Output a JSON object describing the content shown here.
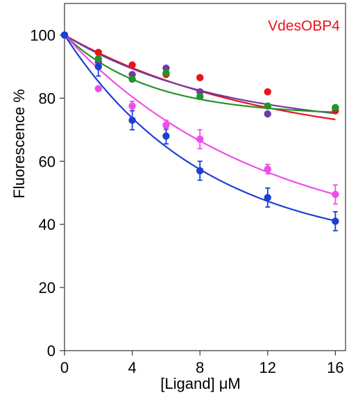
{
  "chart_data": {
    "type": "scatter",
    "title": "VdesOBP4",
    "title_color": "#e8141b",
    "xlabel": "[Ligand] μM",
    "ylabel": "Fluorescence %",
    "xlim": [
      0,
      16.6
    ],
    "ylim": [
      0,
      110
    ],
    "xticks": [
      0,
      4,
      8,
      12,
      16
    ],
    "yticks": [
      0,
      20,
      40,
      60,
      80,
      100
    ],
    "grid": false,
    "legend": "none",
    "series": [
      {
        "color": "#e8141b",
        "x": [
          0,
          2,
          4,
          6,
          8,
          12,
          16
        ],
        "y": [
          100,
          94.5,
          90.5,
          87.5,
          86.5,
          82,
          76
        ],
        "fit_plateau": 64,
        "fit_k": 0.085
      },
      {
        "color": "#6f3aa6",
        "x": [
          0,
          2,
          4,
          6,
          8,
          12,
          16
        ],
        "y": [
          100,
          91.5,
          87.5,
          89.5,
          82,
          75,
          77
        ],
        "fit_plateau": 70,
        "fit_k": 0.11
      },
      {
        "color": "#249229",
        "x": [
          0,
          2,
          4,
          6,
          8,
          12,
          16
        ],
        "y": [
          100,
          92.5,
          86,
          88,
          80.5,
          77.5,
          77
        ],
        "fit_plateau": 74.5,
        "fit_k": 0.2
      },
      {
        "color": "#f04de8",
        "x": [
          0,
          2,
          4,
          6,
          8,
          12,
          16
        ],
        "y": [
          100,
          83,
          77.5,
          71.5,
          67,
          57.5,
          49.5
        ],
        "err": [
          0,
          0,
          1.5,
          1.5,
          3,
          1.5,
          3
        ],
        "fit_plateau": 32,
        "fit_k": 0.085
      },
      {
        "color": "#1c3fd6",
        "x": [
          0,
          2,
          4,
          6,
          8,
          12,
          16
        ],
        "y": [
          100,
          90,
          73,
          68,
          57,
          48.5,
          41
        ],
        "err": [
          0,
          3,
          3,
          2.5,
          3,
          3,
          3
        ],
        "fit_plateau": 31,
        "fit_k": 0.12
      }
    ]
  }
}
